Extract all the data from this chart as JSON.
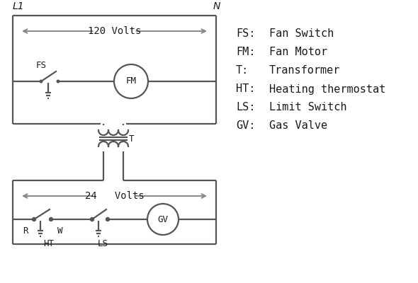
{
  "bg_color": "#ffffff",
  "line_color": "#555555",
  "arrow_color": "#888888",
  "text_color": "#1a1a1a",
  "legend": {
    "FS": "Fan Switch",
    "FM": "Fan Motor",
    "T": "Transformer",
    "HT": "Heating thermostat",
    "LS": "Limit Switch",
    "GV": "Gas Valve"
  },
  "volts_120": "120 Volts",
  "volts_24": "24   Volts",
  "L1_label": "L1",
  "N_label": "N",
  "R_label": "R",
  "W_label": "W",
  "HT_label": "HT",
  "LS_label": "LS",
  "T_label": "T",
  "FS_label": "FS",
  "FM_label": "FM",
  "GV_label": "GV"
}
